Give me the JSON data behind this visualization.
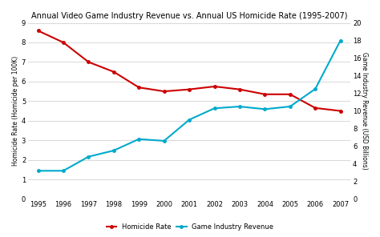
{
  "title": "Annual Video Game Industry Revenue vs. Annual US Homicide Rate (1995-2007)",
  "years": [
    1995,
    1996,
    1997,
    1998,
    1999,
    2000,
    2001,
    2002,
    2003,
    2004,
    2005,
    2006,
    2007
  ],
  "homicide_rate": [
    8.6,
    8.0,
    7.0,
    6.5,
    5.7,
    5.5,
    5.6,
    5.75,
    5.6,
    5.35,
    5.35,
    4.65,
    4.5
  ],
  "game_revenue": [
    3.2,
    3.2,
    4.8,
    5.5,
    6.8,
    6.6,
    9.0,
    10.3,
    10.5,
    10.2,
    10.5,
    12.5,
    18.0
  ],
  "homicide_color": "#cc0000",
  "revenue_color": "#00aacc",
  "ylim_left": [
    0,
    9
  ],
  "ylim_right": [
    0,
    20
  ],
  "yticks_left": [
    0,
    1,
    2,
    3,
    4,
    5,
    6,
    7,
    8,
    9
  ],
  "yticks_right": [
    0,
    2,
    4,
    6,
    8,
    10,
    12,
    14,
    16,
    18,
    20
  ],
  "ylabel_left": "Homicide Rate (Homicide per 100K)",
  "ylabel_right": "Game Industry Revenue (USD Billions)",
  "legend_homicide": "Homicide Rate",
  "legend_revenue": "Game Industry Revenue",
  "bg_color": "#ffffff",
  "plot_bg_color": "#ffffff",
  "grid_color": "#d8d8d8",
  "title_fontsize": 7,
  "label_fontsize": 5.5,
  "tick_fontsize": 6,
  "legend_fontsize": 6,
  "line_width": 1.5,
  "marker": "o",
  "marker_size": 2.5
}
